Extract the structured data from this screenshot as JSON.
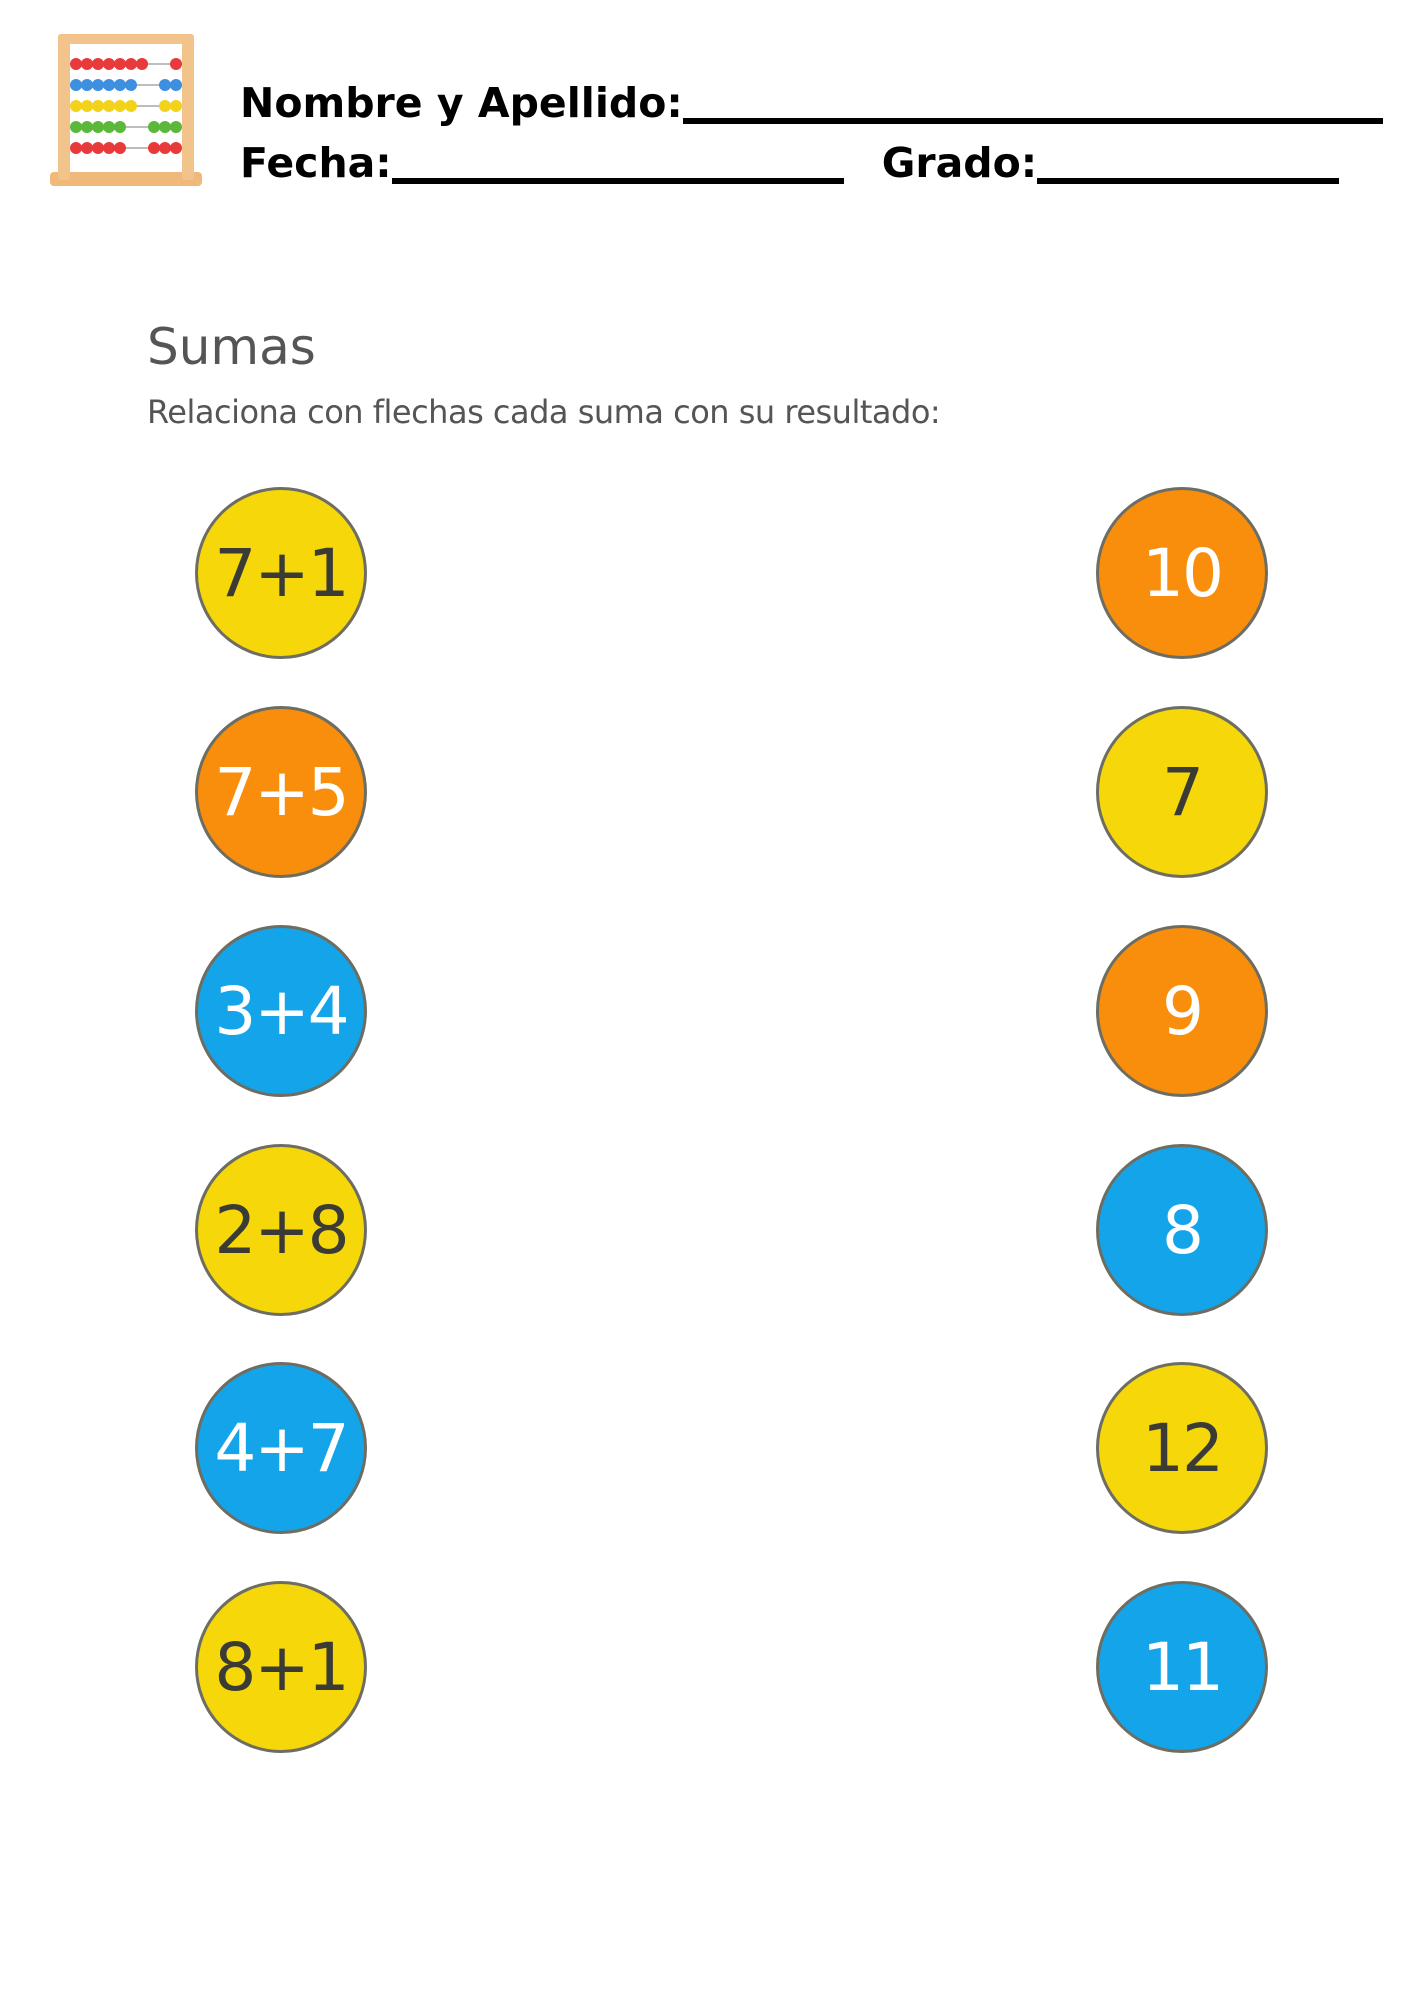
{
  "header": {
    "name_label": "Nombre y Apellido:",
    "date_label": "Fecha:",
    "grade_label": "Grado:"
  },
  "exercise": {
    "title": "Sumas",
    "instruction": "Relaciona con flechas cada suma con su resultado:"
  },
  "sums": [
    "7+1",
    "7+5",
    "3+4",
    "2+8",
    "4+7",
    "8+1"
  ],
  "results": [
    "10",
    "7",
    "9",
    "8",
    "12",
    "11"
  ],
  "colors": {
    "yellow": "#f6d80a",
    "orange": "#f88e0c",
    "blue": "#14a4ea"
  },
  "icons": {
    "logo": "abacus-icon"
  }
}
